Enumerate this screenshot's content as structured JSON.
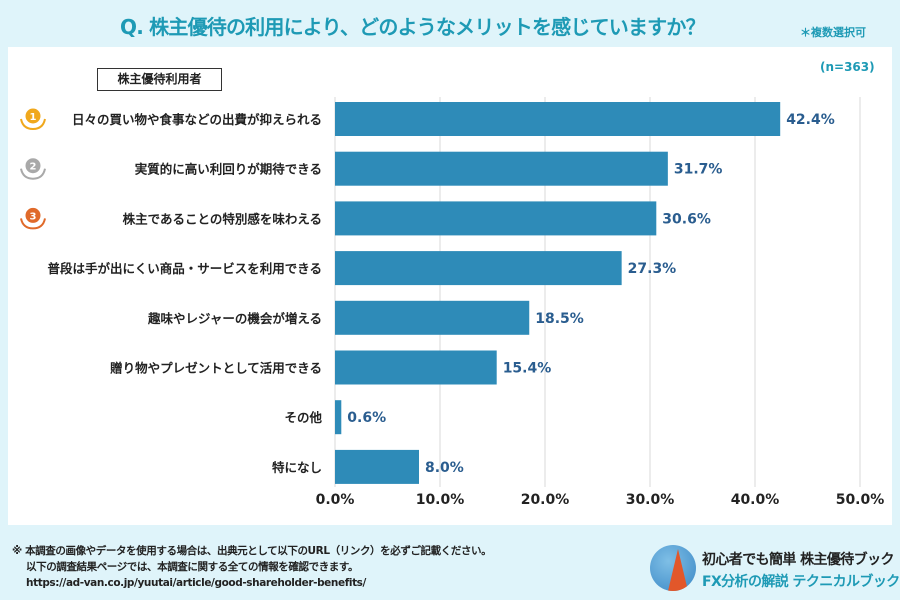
{
  "header": {
    "title": "Q. 株主優待の利用により、どのようなメリットを感じていますか？",
    "note": "＊複数選択可",
    "sample": "(n=363)",
    "legend": "株主優待利用者"
  },
  "chart_data": {
    "type": "bar",
    "orientation": "horizontal",
    "title": "Q. 株主優待の利用により、どのようなメリットを感じていますか？",
    "categories": [
      "日々の買い物や食事などの出費が抑えられる",
      "実質的に高い利回りが期待できる",
      "株主であることの特別感を味わえる",
      "普段は手が出にくい商品・サービスを利用できる",
      "趣味やレジャーの機会が増える",
      "贈り物やプレゼントとして活用できる",
      "その他",
      "特になし"
    ],
    "values": [
      42.4,
      31.7,
      30.6,
      27.3,
      18.5,
      15.4,
      0.6,
      8.0
    ],
    "labels": [
      "42.4%",
      "31.7%",
      "30.6%",
      "27.3%",
      "18.5%",
      "15.4%",
      "0.6%",
      "8.0%"
    ],
    "xlim": [
      0,
      50
    ],
    "ticks": [
      "0.0%",
      "10.0%",
      "20.0%",
      "30.0%",
      "40.0%",
      "50.0%"
    ],
    "grid": true,
    "bar_color": "#2e8bb8",
    "rank_medals": [
      "1",
      "2",
      "3"
    ],
    "medal_colors": [
      "#f0a81c",
      "#a9a9a9",
      "#e06a2a"
    ]
  },
  "footer": {
    "lines": [
      "※ 本調査の画像やデータを使用する場合は、出典元として以下のURL（リンク）を必ずご記載ください。",
      "以下の調査結果ページでは、本調査に関する全ての情報を確認できます。",
      "https://ad-van.co.jp/yuutai/article/good-shareholder-benefits/"
    ],
    "brand1": "初心者でも簡単 株主優待ブック",
    "brand2": "FX分析の解説 テクニカルブック"
  }
}
